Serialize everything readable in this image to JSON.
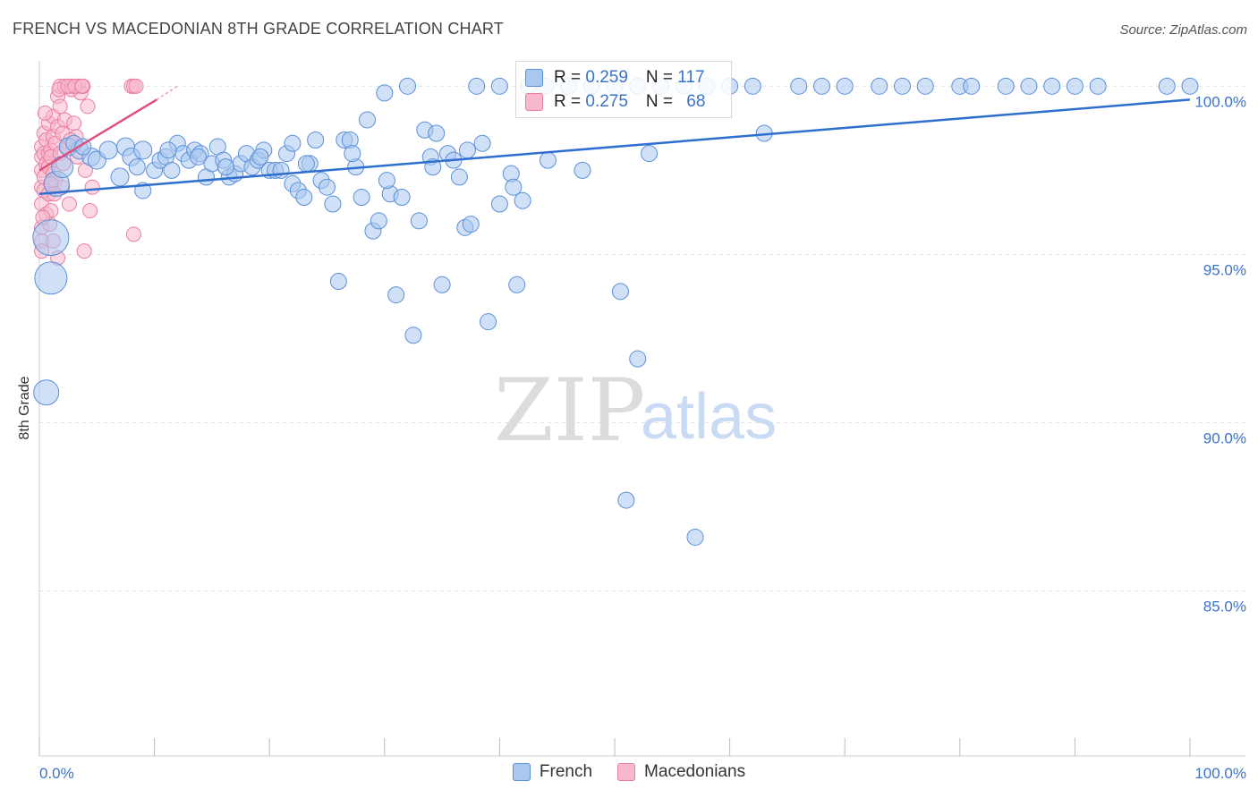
{
  "header": {
    "title": "FRENCH VS MACEDONIAN 8TH GRADE CORRELATION CHART",
    "source": "Source: ZipAtlas.com"
  },
  "watermark": {
    "zip": "ZIP",
    "atlas": "atlas"
  },
  "legend": {
    "r_label": "R = ",
    "n_label": "N = ",
    "rows": [
      {
        "r": "0.259",
        "n": "117"
      },
      {
        "r": "0.275",
        "n": "68"
      }
    ]
  },
  "chart_data": {
    "type": "scatter",
    "title": "FRENCH VS MACEDONIAN 8TH GRADE CORRELATION CHART",
    "ylabel": "8th Grade",
    "xlabel": "",
    "xlim": [
      0,
      100
    ],
    "ylim": [
      80.1,
      100.7
    ],
    "y_ticks": [
      {
        "v": 100,
        "label": "100.0%"
      },
      {
        "v": 95,
        "label": "95.0%"
      },
      {
        "v": 90,
        "label": "90.0%"
      },
      {
        "v": 85,
        "label": "85.0%"
      }
    ],
    "x_ticks": [
      {
        "v": 0,
        "label": "0.0%"
      },
      {
        "v": 100,
        "label": "100.0%"
      }
    ],
    "x_minor_ticks": [
      0,
      10,
      20,
      30,
      40,
      50,
      60,
      70,
      80,
      90,
      100
    ],
    "grid": true,
    "legend_position": "top-center",
    "colors": {
      "french_fill": "#a9c8f0",
      "french_stroke": "#5b8fd8",
      "french_line": "#2f6fcf",
      "macedonian_fill": "#f7b8cc",
      "macedonian_stroke": "#e87fa2",
      "macedonian_line": "#e0507e",
      "tick_text": "#3b73c8"
    },
    "series": [
      {
        "name": "French",
        "trend": {
          "x0": 0,
          "y0": 96.8,
          "x1": 100,
          "y1": 99.6
        },
        "points": [
          [
            1.0,
            95.5,
            20
          ],
          [
            1.0,
            94.3,
            18
          ],
          [
            0.6,
            90.9,
            14
          ],
          [
            1.5,
            97.1,
            14
          ],
          [
            2.0,
            97.6,
            12
          ],
          [
            2.5,
            98.2,
            10
          ],
          [
            3.5,
            98.1,
            10
          ],
          [
            4.5,
            97.9,
            10
          ],
          [
            5.0,
            97.8,
            10
          ],
          [
            6.0,
            98.1,
            10
          ],
          [
            7.0,
            97.3,
            10
          ],
          [
            7.5,
            98.2,
            10
          ],
          [
            8.0,
            97.9,
            10
          ],
          [
            9.0,
            98.1,
            10
          ],
          [
            9.0,
            96.9,
            9
          ],
          [
            10.0,
            97.5,
            9
          ],
          [
            10.5,
            97.8,
            9
          ],
          [
            11.0,
            97.9,
            9
          ],
          [
            11.5,
            97.5,
            9
          ],
          [
            12.0,
            98.3,
            9
          ],
          [
            12.5,
            98.0,
            9
          ],
          [
            13.0,
            97.8,
            9
          ],
          [
            13.5,
            98.1,
            9
          ],
          [
            14.0,
            98.0,
            9
          ],
          [
            14.5,
            97.3,
            9
          ],
          [
            15.0,
            97.7,
            9
          ],
          [
            15.5,
            98.2,
            9
          ],
          [
            16.0,
            97.8,
            9
          ],
          [
            16.5,
            97.3,
            9
          ],
          [
            17.0,
            97.4,
            9
          ],
          [
            17.5,
            97.7,
            9
          ],
          [
            18.0,
            98.0,
            9
          ],
          [
            18.5,
            97.6,
            9
          ],
          [
            19.0,
            97.8,
            9
          ],
          [
            19.5,
            98.1,
            9
          ],
          [
            20.0,
            97.5,
            9
          ],
          [
            20.5,
            97.5,
            9
          ],
          [
            21.0,
            97.5,
            9
          ],
          [
            21.5,
            98.0,
            9
          ],
          [
            22.0,
            98.3,
            9
          ],
          [
            22.0,
            97.1,
            9
          ],
          [
            22.5,
            96.9,
            9
          ],
          [
            23.0,
            96.7,
            9
          ],
          [
            23.5,
            97.7,
            9
          ],
          [
            24.0,
            98.4,
            9
          ],
          [
            24.5,
            97.2,
            9
          ],
          [
            25.0,
            97.0,
            9
          ],
          [
            25.5,
            96.5,
            9
          ],
          [
            26.0,
            94.2,
            9
          ],
          [
            26.5,
            98.4,
            9
          ],
          [
            27.0,
            98.4,
            9
          ],
          [
            27.5,
            97.6,
            9
          ],
          [
            28.0,
            96.7,
            9
          ],
          [
            28.5,
            99.0,
            9
          ],
          [
            29.0,
            95.7,
            9
          ],
          [
            29.5,
            96.0,
            9
          ],
          [
            30.0,
            99.8,
            9
          ],
          [
            30.5,
            96.8,
            9
          ],
          [
            31.0,
            93.8,
            9
          ],
          [
            31.5,
            96.7,
            9
          ],
          [
            32.0,
            100.0,
            9
          ],
          [
            32.5,
            92.6,
            9
          ],
          [
            33.0,
            96.0,
            9
          ],
          [
            33.5,
            98.7,
            9
          ],
          [
            34.0,
            97.9,
            9
          ],
          [
            34.5,
            98.6,
            9
          ],
          [
            35.0,
            94.1,
            9
          ],
          [
            35.5,
            98.0,
            9
          ],
          [
            36.0,
            97.8,
            9
          ],
          [
            36.5,
            97.3,
            9
          ],
          [
            37.0,
            95.8,
            9
          ],
          [
            37.5,
            95.9,
            9
          ],
          [
            38.0,
            100.0,
            9
          ],
          [
            38.5,
            98.3,
            9
          ],
          [
            39.0,
            93.0,
            9
          ],
          [
            40.0,
            96.5,
            9
          ],
          [
            40.0,
            100.0,
            9
          ],
          [
            41.0,
            97.4,
            9
          ],
          [
            41.5,
            94.1,
            9
          ],
          [
            42.0,
            96.6,
            9
          ],
          [
            42.5,
            100.0,
            9
          ],
          [
            44.0,
            100.0,
            9
          ],
          [
            46.0,
            100.0,
            9
          ],
          [
            48.0,
            100.0,
            9
          ],
          [
            50.0,
            100.0,
            9
          ],
          [
            52.0,
            100.0,
            9
          ],
          [
            54.0,
            100.0,
            9
          ],
          [
            56.0,
            100.0,
            9
          ],
          [
            58.0,
            100.0,
            9
          ],
          [
            60.0,
            100.0,
            9
          ],
          [
            62.0,
            100.0,
            9
          ],
          [
            63.0,
            98.6,
            9
          ],
          [
            66.0,
            100.0,
            9
          ],
          [
            68.0,
            100.0,
            9
          ],
          [
            70.0,
            100.0,
            9
          ],
          [
            73.0,
            100.0,
            9
          ],
          [
            75.0,
            100.0,
            9
          ],
          [
            77.0,
            100.0,
            9
          ],
          [
            80.0,
            100.0,
            9
          ],
          [
            81.0,
            100.0,
            9
          ],
          [
            84.0,
            100.0,
            9
          ],
          [
            86.0,
            100.0,
            9
          ],
          [
            88.0,
            100.0,
            9
          ],
          [
            90.0,
            100.0,
            9
          ],
          [
            92.0,
            100.0,
            9
          ],
          [
            98.0,
            100.0,
            9
          ],
          [
            100.0,
            100.0,
            9
          ],
          [
            50.5,
            93.9,
            9
          ],
          [
            51.0,
            87.7,
            9
          ],
          [
            52.0,
            91.9,
            9
          ],
          [
            57.0,
            86.6,
            9
          ],
          [
            3.0,
            98.3,
            9
          ],
          [
            3.8,
            98.2,
            9
          ],
          [
            8.5,
            97.6,
            9
          ],
          [
            11.2,
            98.1,
            9
          ],
          [
            13.8,
            97.9,
            9
          ],
          [
            16.2,
            97.6,
            9
          ],
          [
            19.2,
            97.9,
            9
          ],
          [
            23.2,
            97.7,
            9
          ],
          [
            27.2,
            98.0,
            9
          ],
          [
            30.2,
            97.2,
            9
          ],
          [
            34.2,
            97.6,
            9
          ],
          [
            37.2,
            98.1,
            9
          ],
          [
            41.2,
            97.0,
            9
          ],
          [
            44.2,
            97.8,
            9
          ],
          [
            47.2,
            97.5,
            9
          ],
          [
            53.0,
            98.0,
            9
          ]
        ]
      },
      {
        "name": "Macedonians",
        "trend": {
          "x0": 0,
          "y0": 97.5,
          "x1": 10.2,
          "y1": 99.6
        },
        "trend_extension": {
          "x0": 10.2,
          "y0": 99.6,
          "x1": 12.0,
          "y1": 100.0
        },
        "points": [
          [
            0.2,
            98.2,
            8
          ],
          [
            0.2,
            97.9,
            8
          ],
          [
            0.2,
            97.5,
            8
          ],
          [
            0.2,
            97.0,
            8
          ],
          [
            0.2,
            96.5,
            8
          ],
          [
            0.2,
            95.8,
            8
          ],
          [
            0.2,
            95.4,
            8
          ],
          [
            0.2,
            95.1,
            8
          ],
          [
            0.4,
            98.6,
            8
          ],
          [
            0.4,
            98.0,
            8
          ],
          [
            0.4,
            97.3,
            8
          ],
          [
            0.4,
            96.9,
            8
          ],
          [
            0.6,
            98.4,
            8
          ],
          [
            0.6,
            97.7,
            8
          ],
          [
            0.6,
            96.2,
            8
          ],
          [
            0.8,
            98.0,
            8
          ],
          [
            0.8,
            97.6,
            8
          ],
          [
            0.8,
            96.8,
            8
          ],
          [
            0.8,
            98.9,
            8
          ],
          [
            1.0,
            98.1,
            8
          ],
          [
            1.0,
            97.9,
            8
          ],
          [
            1.0,
            96.3,
            8
          ],
          [
            1.2,
            99.1,
            8
          ],
          [
            1.2,
            98.5,
            8
          ],
          [
            1.2,
            97.4,
            8
          ],
          [
            1.2,
            95.4,
            8
          ],
          [
            1.4,
            98.3,
            8
          ],
          [
            1.4,
            97.2,
            8
          ],
          [
            1.6,
            99.7,
            8
          ],
          [
            1.6,
            98.8,
            8
          ],
          [
            1.6,
            94.9,
            8
          ],
          [
            1.8,
            100.0,
            8
          ],
          [
            1.8,
            99.4,
            8
          ],
          [
            1.8,
            98.0,
            8
          ],
          [
            2.0,
            98.6,
            8
          ],
          [
            2.0,
            97.0,
            8
          ],
          [
            2.2,
            100.0,
            8
          ],
          [
            2.2,
            99.0,
            8
          ],
          [
            2.4,
            98.2,
            8
          ],
          [
            2.6,
            96.5,
            8
          ],
          [
            2.8,
            100.0,
            8
          ],
          [
            2.8,
            99.9,
            8
          ],
          [
            3.0,
            98.9,
            8
          ],
          [
            3.2,
            98.5,
            8
          ],
          [
            3.4,
            100.0,
            8
          ],
          [
            3.6,
            99.8,
            8
          ],
          [
            3.8,
            100.0,
            8
          ],
          [
            4.0,
            97.5,
            8
          ],
          [
            4.2,
            99.4,
            8
          ],
          [
            4.4,
            96.3,
            8
          ],
          [
            4.6,
            97.0,
            8
          ],
          [
            8.0,
            100.0,
            8
          ],
          [
            8.2,
            100.0,
            8
          ],
          [
            8.4,
            100.0,
            8
          ],
          [
            3.9,
            95.1,
            8
          ],
          [
            8.2,
            95.6,
            8
          ],
          [
            1.0,
            97.1,
            8
          ],
          [
            2.1,
            97.7,
            8
          ],
          [
            0.5,
            99.2,
            8
          ],
          [
            1.3,
            96.8,
            8
          ],
          [
            2.7,
            98.4,
            8
          ],
          [
            0.9,
            95.9,
            8
          ],
          [
            3.3,
            97.9,
            8
          ],
          [
            0.3,
            96.1,
            8
          ],
          [
            1.7,
            99.9,
            8
          ],
          [
            2.5,
            100.0,
            8
          ],
          [
            3.1,
            100.0,
            8
          ],
          [
            3.7,
            100.0,
            8
          ]
        ]
      }
    ]
  },
  "bottom_legend": {
    "items": [
      {
        "label": "French"
      },
      {
        "label": "Macedonians"
      }
    ]
  }
}
